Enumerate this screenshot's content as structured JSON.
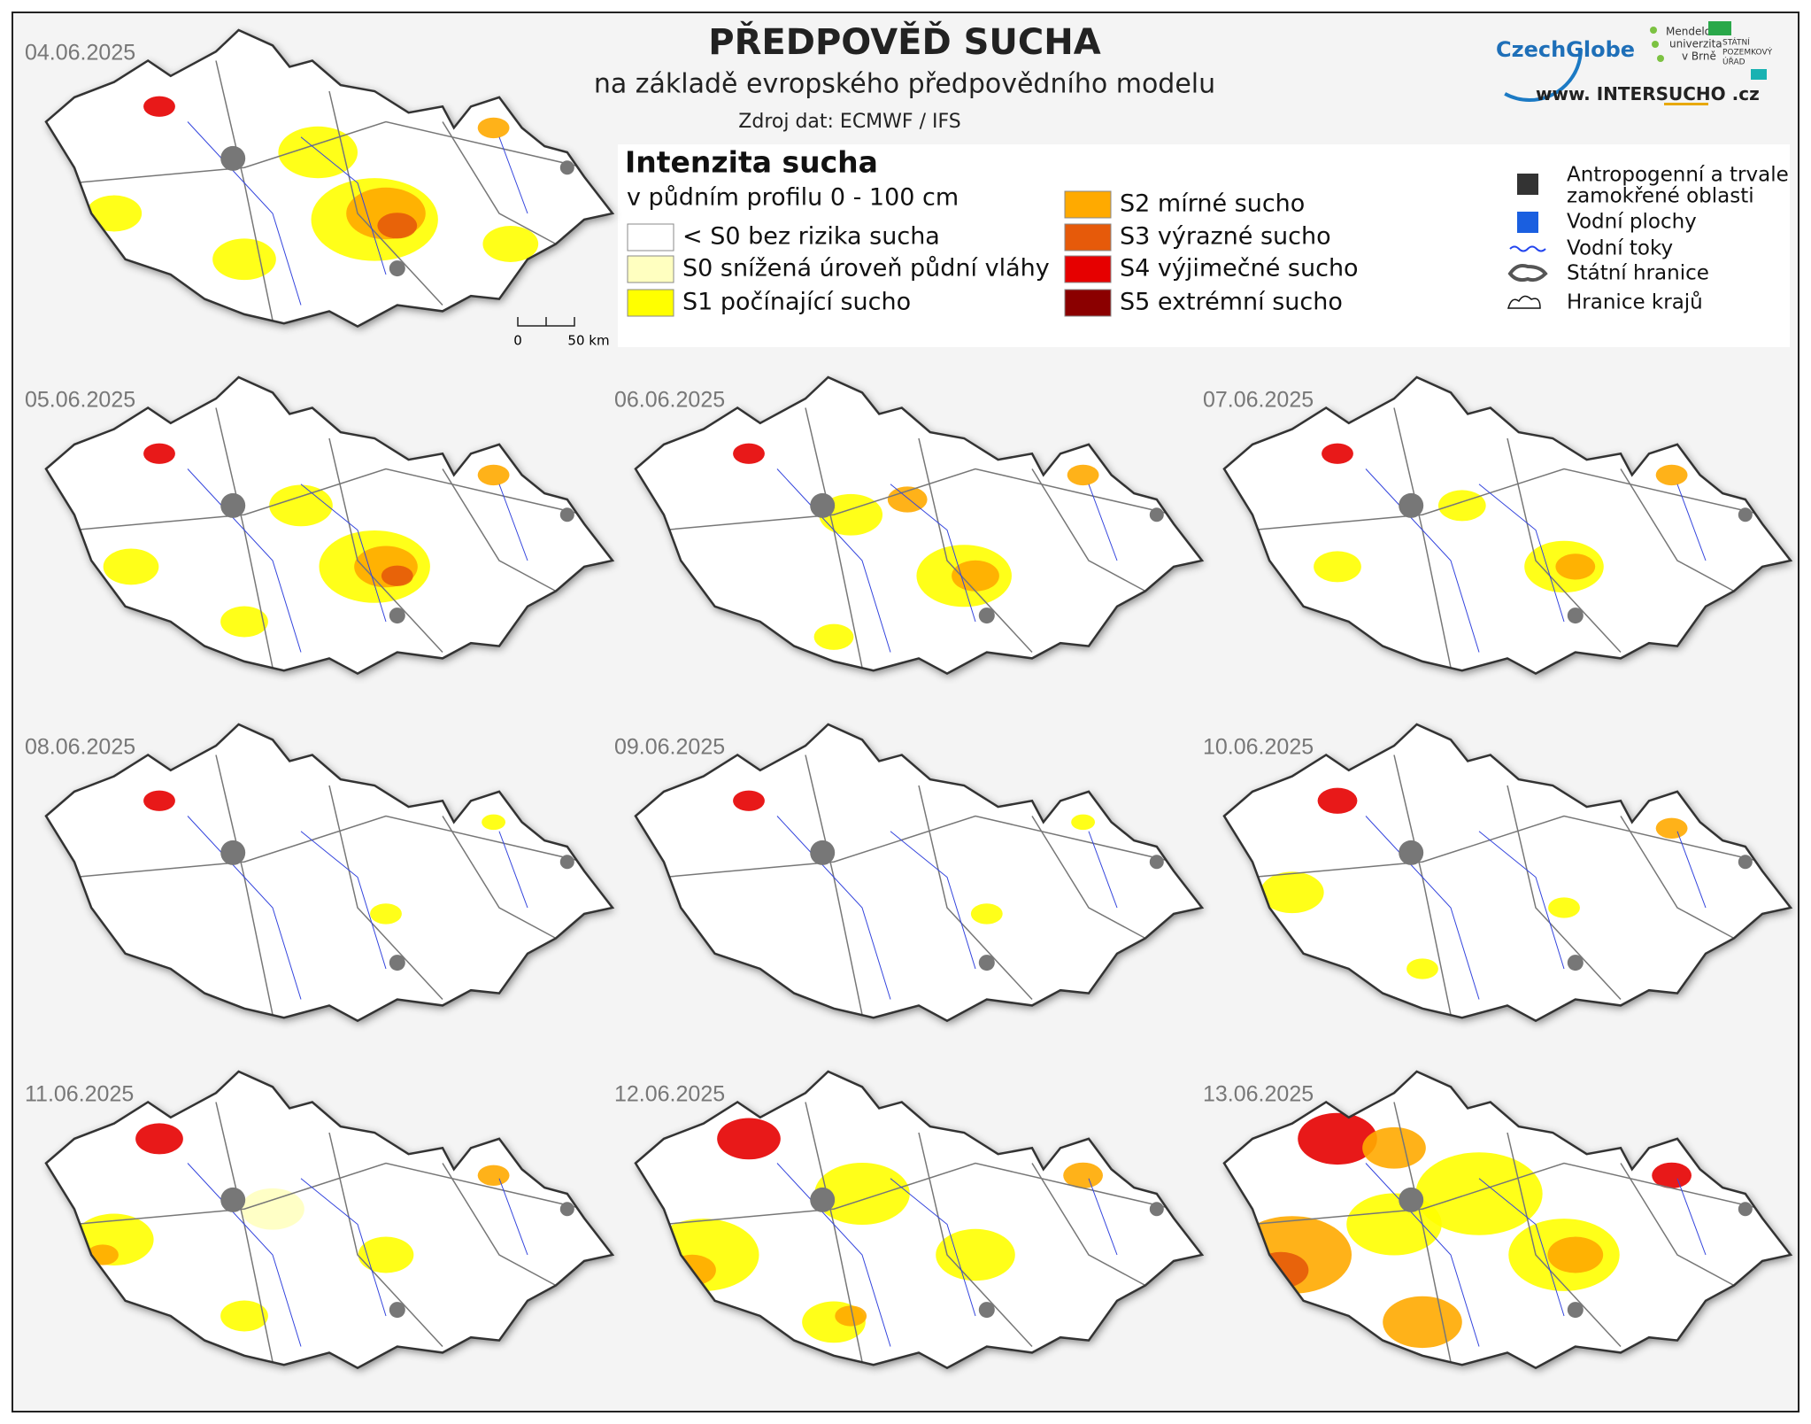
{
  "header": {
    "title": "PŘEDPOVĚĎ SUCHA",
    "subtitle": "na základě evropského předpovědního modelu",
    "source": "Zdroj dat: ECMWF / IFS"
  },
  "logos": {
    "czechglobe": "CzechGlobe",
    "mendelu": [
      "Mendelova",
      "univerzita",
      "v Brně"
    ],
    "spu": [
      "STÁTNÍ",
      "POZEMKOVÝ",
      "ÚŘAD"
    ],
    "website": [
      "www. INTER",
      "SUCHO",
      " .cz"
    ]
  },
  "legend": {
    "title": "Intenzita sucha",
    "subtitle": "v půdním profilu 0 - 100 cm",
    "classes": [
      {
        "label": "< S0 bez rizika sucha",
        "color": "#ffffff"
      },
      {
        "label": "S0 snížená úroveň půdní vláhy",
        "color": "#ffffc0"
      },
      {
        "label": "S1 počínající sucho",
        "color": "#ffff00"
      },
      {
        "label": "S2 mírné sucho",
        "color": "#ffaa00"
      },
      {
        "label": "S3 výrazné sucho",
        "color": "#e65a0a"
      },
      {
        "label": "S4 výjimečné sucho",
        "color": "#e60000"
      },
      {
        "label": "S5 extrémní sucho",
        "color": "#8b0000"
      }
    ],
    "layers": [
      {
        "label": [
          "Antropogenní a trvale",
          "zamokřené oblasti"
        ]
      },
      {
        "label": [
          "Vodní plochy"
        ]
      },
      {
        "label": [
          "Vodní toky"
        ]
      },
      {
        "label": [
          "Státní hranice"
        ]
      },
      {
        "label": [
          "Hranice krajů"
        ]
      }
    ]
  },
  "scale": {
    "labels": [
      "0",
      "50 km"
    ]
  },
  "maps": [
    {
      "date": "04.06.2025"
    },
    {
      "date": "05.06.2025"
    },
    {
      "date": "06.06.2025"
    },
    {
      "date": "07.06.2025"
    },
    {
      "date": "08.06.2025"
    },
    {
      "date": "09.06.2025"
    },
    {
      "date": "10.06.2025"
    },
    {
      "date": "11.06.2025"
    },
    {
      "date": "12.06.2025"
    },
    {
      "date": "13.06.2025"
    }
  ]
}
